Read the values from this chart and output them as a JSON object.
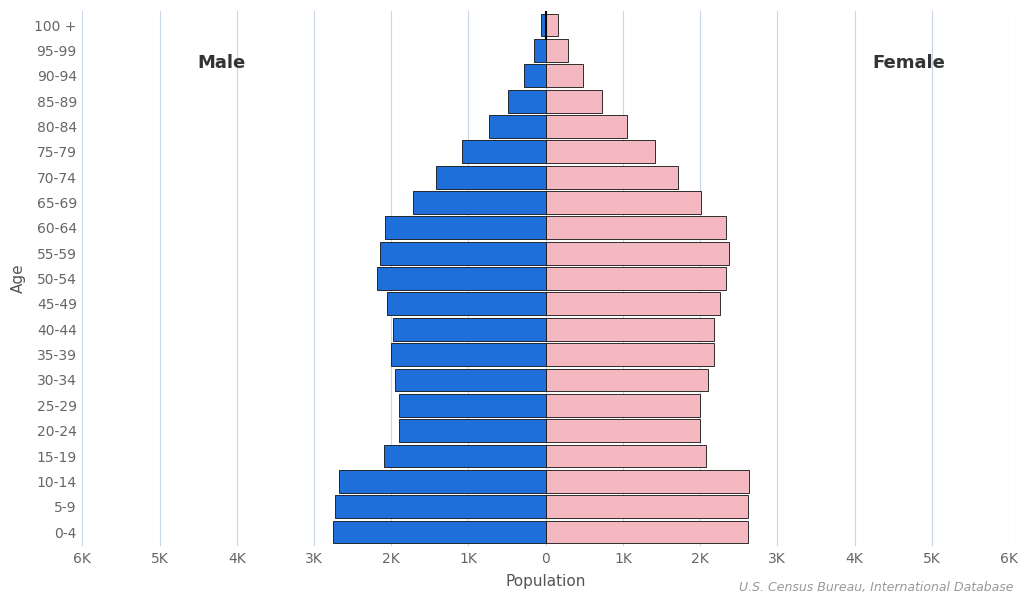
{
  "age_groups": [
    "0-4",
    "5-9",
    "10-14",
    "15-19",
    "20-24",
    "25-29",
    "30-34",
    "35-39",
    "40-44",
    "45-49",
    "50-54",
    "55-59",
    "60-64",
    "65-69",
    "70-74",
    "75-79",
    "80-84",
    "85-89",
    "90-94",
    "95-99",
    "100 +"
  ],
  "male": [
    2750,
    2730,
    2680,
    2100,
    1900,
    1900,
    1950,
    2000,
    1980,
    2050,
    2180,
    2150,
    2080,
    1720,
    1420,
    1080,
    740,
    490,
    285,
    155,
    65
  ],
  "female": [
    2620,
    2620,
    2630,
    2080,
    2000,
    2000,
    2100,
    2180,
    2180,
    2260,
    2330,
    2380,
    2330,
    2010,
    1720,
    1420,
    1050,
    730,
    490,
    295,
    165
  ],
  "male_color": "#1f6fdb",
  "female_color": "#f4b8c1",
  "male_edge_color": "#111111",
  "female_edge_color": "#111111",
  "xlabel": "Population",
  "ylabel": "Age",
  "male_label": "Male",
  "female_label": "Female",
  "xlim": [
    -6000,
    6000
  ],
  "xtick_values": [
    -6000,
    -5000,
    -4000,
    -3000,
    -2000,
    -1000,
    0,
    1000,
    2000,
    3000,
    4000,
    5000,
    6000
  ],
  "xtick_labels": [
    "6K",
    "5K",
    "4K",
    "3K",
    "2K",
    "1K",
    "0",
    "1K",
    "2K",
    "3K",
    "4K",
    "5K",
    "6K"
  ],
  "grid_color": "#c8d4e8",
  "background_color": "#ffffff",
  "source_text": "U.S. Census Bureau, International Database",
  "label_fontsize": 11,
  "tick_fontsize": 10,
  "source_fontsize": 9,
  "bar_height": 0.9
}
